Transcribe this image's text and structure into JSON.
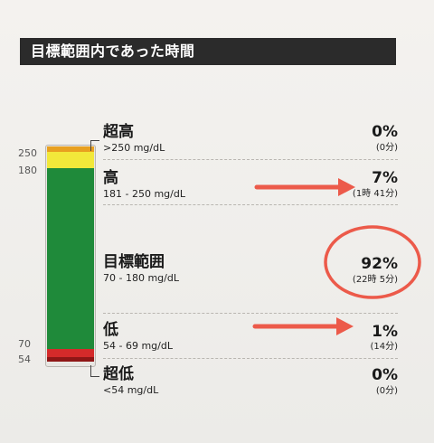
{
  "header": {
    "title": "目標範囲内であった時間"
  },
  "axis_ticks": [
    "250",
    "180",
    "70",
    "54"
  ],
  "ranges": [
    {
      "name": "超高",
      "range": ">250 mg/dL",
      "percent": "0%",
      "duration": "(0分)"
    },
    {
      "name": "高",
      "range": "181 - 250 mg/dL",
      "percent": "7%",
      "duration": "(1時 41分)"
    },
    {
      "name": "目標範囲",
      "range": "70 - 180 mg/dL",
      "percent": "92%",
      "duration": "(22時 5分)"
    },
    {
      "name": "低",
      "range": "54 - 69 mg/dL",
      "percent": "1%",
      "duration": "(14分)"
    },
    {
      "name": "超低",
      "range": "<54 mg/dL",
      "percent": "0%",
      "duration": "(0分)"
    }
  ],
  "colors": {
    "very_high": "#e8a020",
    "high": "#f2e83a",
    "in_range": "#1f8a3a",
    "low": "#d42a2a",
    "very_low": "#8e1616",
    "annotation": "#ec5a4a"
  },
  "chart_data": {
    "type": "bar",
    "categories": [
      "超高",
      "高",
      "目標範囲",
      "低",
      "超低"
    ],
    "values": [
      0,
      7,
      92,
      1,
      0
    ],
    "thresholds_mg_dl": [
      54,
      70,
      180,
      250
    ],
    "xlabel": "",
    "ylabel": ""
  }
}
